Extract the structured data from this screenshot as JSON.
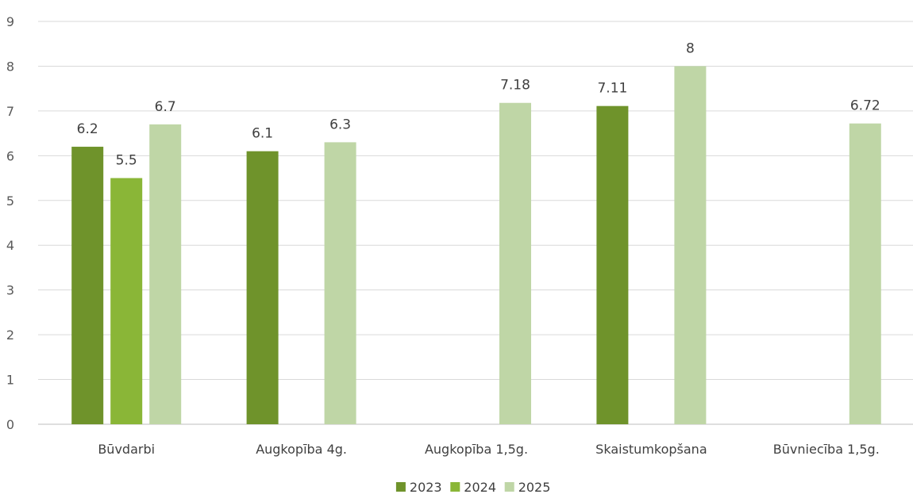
{
  "chart_data": {
    "type": "bar",
    "title": "",
    "xlabel": "",
    "ylabel": "",
    "ylim": [
      0,
      9
    ],
    "yticks": [
      0,
      1,
      2,
      3,
      4,
      5,
      6,
      7,
      8,
      9
    ],
    "grid": true,
    "legend_position": "bottom",
    "categories": [
      "Būvdarbi",
      "Augkopība 4g.",
      "Augkopība 1,5g.",
      "Skaistumkopšana",
      "Būvniecība 1,5g."
    ],
    "series": [
      {
        "name": "2023",
        "color": "#6f932b",
        "values": [
          6.2,
          6.1,
          null,
          7.11,
          null
        ],
        "labels": [
          "6.2",
          "6.1",
          null,
          "7.11",
          null
        ]
      },
      {
        "name": "2024",
        "color": "#8ab637",
        "values": [
          5.5,
          null,
          null,
          null,
          null
        ],
        "labels": [
          "5.5",
          null,
          null,
          null,
          null
        ]
      },
      {
        "name": "2025",
        "color": "#bfd6a6",
        "values": [
          6.7,
          6.3,
          7.18,
          8,
          6.72
        ],
        "labels": [
          "6.7",
          "6.3",
          "7.18",
          "8",
          "6.72"
        ]
      }
    ]
  }
}
